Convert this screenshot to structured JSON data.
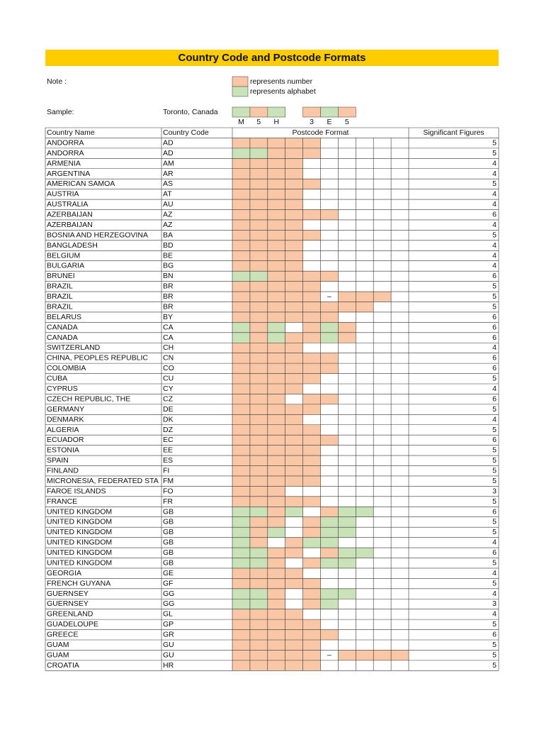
{
  "header": {
    "title": "Country Code and Postcode Formats"
  },
  "note": {
    "label": "Note :",
    "legend": [
      {
        "code": "N",
        "label": "represents number"
      },
      {
        "code": "A",
        "label": "represents alphabet"
      }
    ]
  },
  "sample": {
    "label": "Sample:",
    "place": "Toronto, Canada",
    "format": "ANA_NAN",
    "chars": [
      "M",
      "5",
      "H",
      "3",
      "E",
      "5"
    ]
  },
  "table": {
    "headers": [
      "Country Name",
      "Country Code",
      "Postcode Format",
      "Significant Figures"
    ],
    "rows": [
      {
        "name": "ANDORRA",
        "code": "AD",
        "format": "NNNNN",
        "sig": 5
      },
      {
        "name": "ANDORRA",
        "code": "AD",
        "format": "AANNN",
        "sig": 5
      },
      {
        "name": "ARMENIA",
        "code": "AM",
        "format": "NNNN",
        "sig": 4
      },
      {
        "name": "ARGENTINA",
        "code": "AR",
        "format": "NNNN",
        "sig": 4
      },
      {
        "name": "AMERICAN SAMOA",
        "code": "AS",
        "format": "NNNNN",
        "sig": 5
      },
      {
        "name": "AUSTRIA",
        "code": "AT",
        "format": "NNNN",
        "sig": 4
      },
      {
        "name": "AUSTRALIA",
        "code": "AU",
        "format": "NNNN",
        "sig": 4
      },
      {
        "name": "AZERBAIJAN",
        "code": "AZ",
        "format": "NNNNNN",
        "sig": 6
      },
      {
        "name": "AZERBAIJAN",
        "code": "AZ",
        "format": "NNNN",
        "sig": 4
      },
      {
        "name": "BOSNIA AND HERZEGOVINA",
        "code": "BA",
        "format": "NNNNN",
        "sig": 5
      },
      {
        "name": "BANGLADESH",
        "code": "BD",
        "format": "NNNN",
        "sig": 4
      },
      {
        "name": "BELGIUM",
        "code": "BE",
        "format": "NNNN",
        "sig": 4
      },
      {
        "name": "BULGARIA",
        "code": "BG",
        "format": "NNNN",
        "sig": 4
      },
      {
        "name": "BRUNEI",
        "code": "BN",
        "format": "AANNNN",
        "sig": 6
      },
      {
        "name": "BRAZIL",
        "code": "BR",
        "format": "NNNNN",
        "sig": 5
      },
      {
        "name": "BRAZIL",
        "code": "BR",
        "format": "NNNNN-NNN",
        "sig": 5
      },
      {
        "name": "BRAZIL",
        "code": "BR",
        "format": "NNNNNNNN",
        "sig": 5
      },
      {
        "name": "BELARUS",
        "code": "BY",
        "format": "NNNNNN",
        "sig": 6
      },
      {
        "name": "CANADA",
        "code": "CA",
        "format": "ANA_NAN",
        "sig": 6
      },
      {
        "name": "CANADA",
        "code": "CA",
        "format": "ANANNAN",
        "sig": 6
      },
      {
        "name": "SWITZERLAND",
        "code": "CH",
        "format": "NNNN",
        "sig": 4
      },
      {
        "name": "CHINA, PEOPLES REPUBLIC",
        "code": "CN",
        "format": "NNNNNN",
        "sig": 6
      },
      {
        "name": "COLOMBIA",
        "code": "CO",
        "format": "NNNNNN",
        "sig": 6
      },
      {
        "name": "CUBA",
        "code": "CU",
        "format": "NNNNN",
        "sig": 5
      },
      {
        "name": "CYPRUS",
        "code": "CY",
        "format": "NNNN",
        "sig": 4
      },
      {
        "name": "CZECH REPUBLIC, THE",
        "code": "CZ",
        "format": "NNN_NN",
        "sig": 6
      },
      {
        "name": "GERMANY",
        "code": "DE",
        "format": "NNNNN",
        "sig": 5
      },
      {
        "name": "DENMARK",
        "code": "DK",
        "format": "NNNN",
        "sig": 4
      },
      {
        "name": "ALGERIA",
        "code": "DZ",
        "format": "NNNNN",
        "sig": 5
      },
      {
        "name": "ECUADOR",
        "code": "EC",
        "format": "NNNNNN",
        "sig": 6
      },
      {
        "name": "ESTONIA",
        "code": "EE",
        "format": "NNNNN",
        "sig": 5
      },
      {
        "name": "SPAIN",
        "code": "ES",
        "format": "NNNNN",
        "sig": 5
      },
      {
        "name": "FINLAND",
        "code": "FI",
        "format": "NNNNN",
        "sig": 5
      },
      {
        "name": "MICRONESIA, FEDERATED STA",
        "code": "FM",
        "format": "NNNNN",
        "sig": 5
      },
      {
        "name": "FAROE ISLANDS",
        "code": "FO",
        "format": "NNN",
        "sig": 3
      },
      {
        "name": "FRANCE",
        "code": "FR",
        "format": "NNNNN",
        "sig": 5
      },
      {
        "name": "UNITED KINGDOM",
        "code": "GB",
        "format": "AANA_NAA",
        "sig": 6
      },
      {
        "name": "UNITED KINGDOM",
        "code": "GB",
        "format": "ANN_NAA",
        "sig": 5
      },
      {
        "name": "UNITED KINGDOM",
        "code": "GB",
        "format": "ANA_NAA",
        "sig": 5
      },
      {
        "name": "UNITED KINGDOM",
        "code": "GB",
        "format": "AN_NAA",
        "sig": 4
      },
      {
        "name": "UNITED KINGDOM",
        "code": "GB",
        "format": "AANN_NAA",
        "sig": 6
      },
      {
        "name": "UNITED KINGDOM",
        "code": "GB",
        "format": "AAN_NAA",
        "sig": 5
      },
      {
        "name": "GEORGIA",
        "code": "GE",
        "format": "NNNN",
        "sig": 4
      },
      {
        "name": "FRENCH GUYANA",
        "code": "GF",
        "format": "NNNNN",
        "sig": 5
      },
      {
        "name": "GUERNSEY",
        "code": "GG",
        "format": "AAN_NAA",
        "sig": 4
      },
      {
        "name": "GUERNSEY",
        "code": "GG",
        "format": "AAN_NA",
        "sig": 3
      },
      {
        "name": "GREENLAND",
        "code": "GL",
        "format": "NNNN",
        "sig": 4
      },
      {
        "name": "GUADELOUPE",
        "code": "GP",
        "format": "NNNNN",
        "sig": 5
      },
      {
        "name": "GREECE",
        "code": "GR",
        "format": "NNNNNN",
        "sig": 6
      },
      {
        "name": "GUAM",
        "code": "GU",
        "format": "NNNNN",
        "sig": 5
      },
      {
        "name": "GUAM",
        "code": "GU",
        "format": "NNNNN-NNNN",
        "sig": 5
      },
      {
        "name": "CROATIA",
        "code": "HR",
        "format": "NNNNN",
        "sig": 5
      }
    ]
  }
}
